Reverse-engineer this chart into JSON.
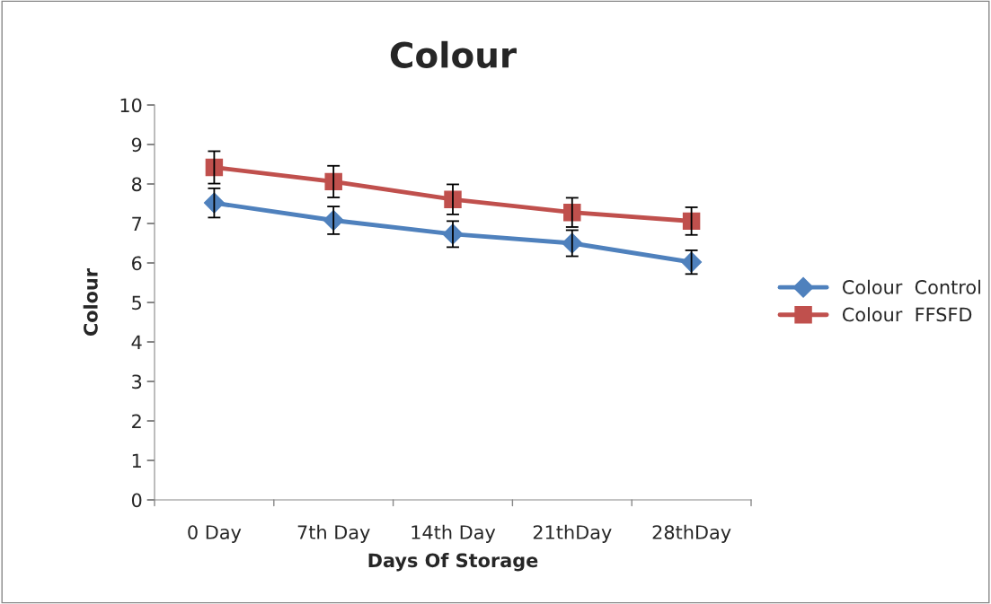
{
  "chart_data": {
    "type": "line",
    "title": "Colour",
    "xlabel": "Days Of Storage",
    "ylabel": "Colour",
    "categories": [
      "0 Day",
      "7th Day",
      "14th Day",
      "21thDay",
      "28thDay"
    ],
    "series": [
      {
        "name": "Colour  Control",
        "color": "#4f81bd",
        "marker": "diamond",
        "values": [
          7.52,
          7.08,
          6.73,
          6.5,
          6.02
        ],
        "errors": [
          0.37,
          0.35,
          0.33,
          0.33,
          0.3
        ]
      },
      {
        "name": "Colour  FFSFD",
        "color": "#c0504d",
        "marker": "square",
        "values": [
          8.42,
          8.06,
          7.61,
          7.28,
          7.06
        ],
        "errors": [
          0.41,
          0.4,
          0.38,
          0.37,
          0.35
        ]
      }
    ],
    "ylim": [
      0,
      10
    ],
    "yticks": [
      0,
      1,
      2,
      3,
      4,
      5,
      6,
      7,
      8,
      9,
      10
    ],
    "grid": false,
    "legend": "right",
    "line_style": "solid"
  }
}
